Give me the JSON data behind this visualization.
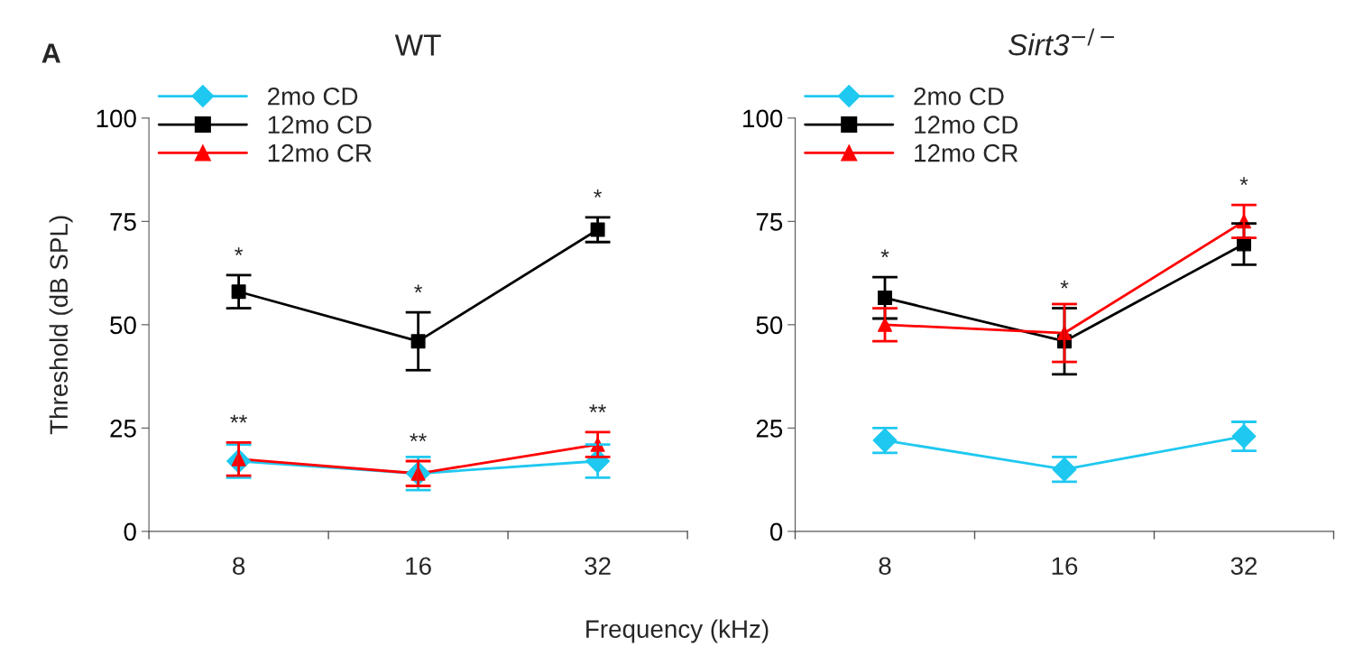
{
  "chart_data": [
    {
      "type": "line",
      "title": "WT",
      "xlabel": "Frequency (kHz)",
      "ylabel": "Threshold (dB SPL)",
      "categories": [
        "8",
        "16",
        "32"
      ],
      "ylim": [
        0,
        100
      ],
      "yticks": [
        0,
        25,
        50,
        75,
        100
      ],
      "grid": false,
      "legend": "top left",
      "series": [
        {
          "name": "2mo CD",
          "color": "#1ec8f0",
          "marker": "diamond",
          "values": [
            17,
            14,
            17
          ],
          "errors": [
            4,
            4,
            4
          ]
        },
        {
          "name": "12mo CD",
          "color": "#000000",
          "marker": "square",
          "values": [
            58,
            46,
            73
          ],
          "errors": [
            4,
            7,
            3
          ],
          "value_labels": [
            "*",
            "*",
            "*"
          ]
        },
        {
          "name": "12mo CR",
          "color": "#ff0000",
          "marker": "triangle",
          "values": [
            17.5,
            14,
            21
          ],
          "errors": [
            4,
            3,
            3
          ],
          "value_labels": [
            "**",
            "**",
            "**"
          ]
        }
      ],
      "annotations": [
        "A"
      ]
    },
    {
      "type": "line",
      "title": "Sirt3$^{−/−}$",
      "categories": [
        "8",
        "16",
        "32"
      ],
      "ylim": [
        0,
        100
      ],
      "yticks": [
        0,
        25,
        50,
        75,
        100
      ],
      "grid": false,
      "legend": "top left",
      "series": [
        {
          "name": "2mo CD",
          "color": "#1ec8f0",
          "marker": "diamond",
          "values": [
            22,
            15,
            23
          ],
          "errors": [
            3,
            3,
            3.5
          ]
        },
        {
          "name": "12mo CD",
          "color": "#000000",
          "marker": "square",
          "values": [
            56.5,
            46,
            69.5
          ],
          "errors": [
            5,
            8,
            5
          ],
          "value_labels": [
            "*",
            "*",
            null
          ]
        },
        {
          "name": "12mo CR",
          "color": "#ff0000",
          "marker": "triangle",
          "values": [
            50,
            48,
            75
          ],
          "errors": [
            4,
            7,
            4
          ],
          "value_labels": [
            null,
            null,
            "*"
          ]
        }
      ]
    }
  ]
}
